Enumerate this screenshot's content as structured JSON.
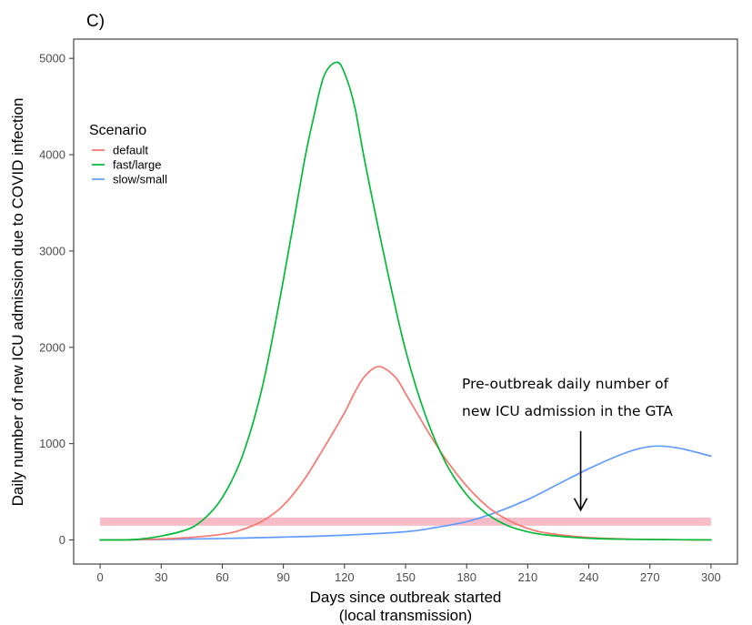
{
  "chart_data": {
    "type": "line",
    "panel_label": "C)",
    "xlabel_line1": "Days since outbreak started",
    "xlabel_line2": "(local transmission)",
    "ylabel": "Daily number of new ICU admission due to COVID infection",
    "xlim": [
      -13,
      313
    ],
    "ylim": [
      -250,
      5200
    ],
    "x_ticks": [
      0,
      30,
      60,
      90,
      120,
      150,
      180,
      210,
      240,
      270,
      300
    ],
    "y_ticks": [
      0,
      1000,
      2000,
      3000,
      4000,
      5000
    ],
    "grid": false,
    "legend": {
      "title": "Scenario",
      "placement": "top-left",
      "entries": [
        "default",
        "fast/large",
        "slow/small"
      ]
    },
    "series": [
      {
        "name": "default",
        "color": "#F8766D",
        "x": [
          0,
          20,
          40,
          60,
          70,
          80,
          90,
          100,
          110,
          120,
          125,
          130,
          137,
          145,
          150,
          155,
          160,
          165,
          170,
          180,
          190,
          200,
          210,
          220,
          240,
          260,
          280,
          300
        ],
        "y": [
          0,
          4,
          20,
          60,
          110,
          200,
          360,
          620,
          960,
          1320,
          1530,
          1700,
          1800,
          1690,
          1520,
          1340,
          1160,
          990,
          830,
          560,
          350,
          210,
          120,
          70,
          25,
          9,
          3,
          1
        ]
      },
      {
        "name": "fast/large",
        "color": "#00BA38",
        "x": [
          0,
          20,
          40,
          50,
          60,
          70,
          80,
          90,
          100,
          105,
          110,
          116,
          120,
          125,
          130,
          140,
          150,
          160,
          170,
          180,
          190,
          200,
          210,
          220,
          240,
          260,
          280,
          300
        ],
        "y": [
          0,
          10,
          90,
          200,
          440,
          880,
          1620,
          2700,
          3900,
          4400,
          4820,
          4960,
          4850,
          4500,
          3930,
          2900,
          1970,
          1280,
          790,
          470,
          270,
          150,
          85,
          50,
          18,
          7,
          3,
          1
        ]
      },
      {
        "name": "slow/small",
        "color": "#619CFF",
        "x": [
          0,
          30,
          60,
          90,
          120,
          150,
          165,
          180,
          195,
          210,
          225,
          240,
          255,
          265,
          274,
          285,
          300
        ],
        "y": [
          0,
          5,
          15,
          30,
          50,
          85,
          130,
          190,
          290,
          420,
          580,
          740,
          880,
          950,
          975,
          950,
          870
        ]
      }
    ],
    "reference_band": {
      "name": "Pre-outbreak daily number of new ICU admission in the GTA",
      "color": "#F7BCC7",
      "y": 190,
      "x_range": [
        0,
        300
      ]
    },
    "annotation": {
      "line1": "Pre-outbreak daily number of",
      "line2": "new ICU admission in the GTA",
      "arrow_x": 236,
      "arrow_from_y": 1130,
      "arrow_to_y": 310
    }
  }
}
